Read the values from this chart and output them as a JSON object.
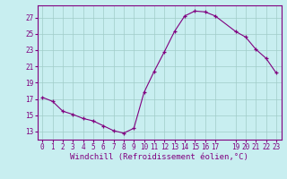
{
  "x": [
    0,
    1,
    2,
    3,
    4,
    5,
    6,
    7,
    8,
    9,
    10,
    11,
    12,
    13,
    14,
    15,
    16,
    17,
    19,
    20,
    21,
    22,
    23
  ],
  "y": [
    17.2,
    16.7,
    15.5,
    15.1,
    14.6,
    14.3,
    13.7,
    13.1,
    12.8,
    13.4,
    17.8,
    20.4,
    22.8,
    25.3,
    27.2,
    27.8,
    27.7,
    27.2,
    25.3,
    24.6,
    23.1,
    22.0,
    20.2
  ],
  "xticks": [
    0,
    1,
    2,
    3,
    4,
    5,
    6,
    7,
    8,
    9,
    10,
    11,
    12,
    13,
    14,
    15,
    16,
    17,
    19,
    20,
    21,
    22,
    23
  ],
  "yticks": [
    13,
    15,
    17,
    19,
    21,
    23,
    25,
    27
  ],
  "ylim": [
    12.0,
    28.5
  ],
  "xlim": [
    -0.5,
    23.5
  ],
  "xlabel": "Windchill (Refroidissement éolien,°C)",
  "line_color": "#800080",
  "marker": "+",
  "bg_color": "#c8eef0",
  "grid_color": "#a0ccc8",
  "font_color": "#800080",
  "tick_fontsize": 5.5,
  "label_fontsize": 6.5
}
